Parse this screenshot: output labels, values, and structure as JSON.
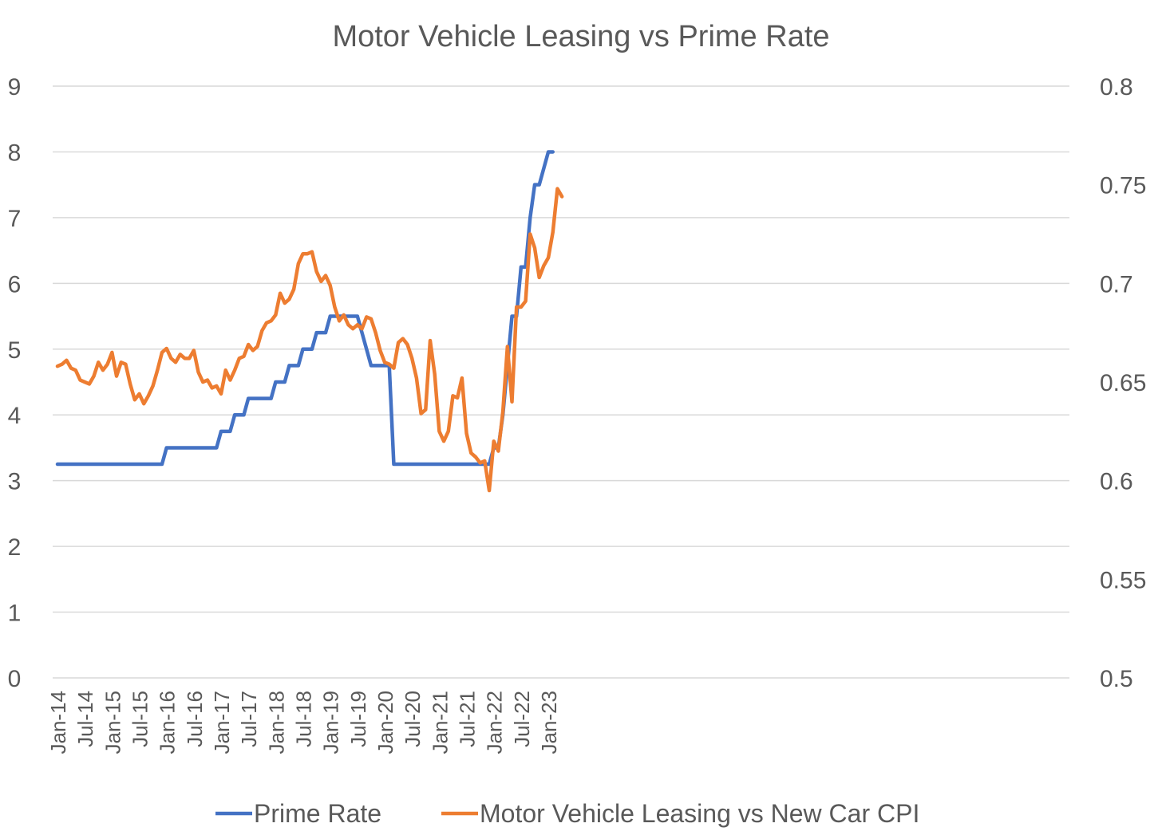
{
  "chart_data": {
    "type": "line",
    "title": "Motor Vehicle Leasing vs Prime Rate",
    "x_tick_labels": [
      "Jan-14",
      "Jul-14",
      "Jan-15",
      "Jul-15",
      "Jan-16",
      "Jul-16",
      "Jan-17",
      "Jul-17",
      "Jan-18",
      "Jul-18",
      "Jan-19",
      "Jul-19",
      "Jan-20",
      "Jul-20",
      "Jan-21",
      "Jul-21",
      "Jan-22",
      "Jul-22",
      "Jan-23"
    ],
    "y_left": {
      "ticks": [
        "0",
        "1",
        "2",
        "3",
        "4",
        "5",
        "6",
        "7",
        "8",
        "9"
      ],
      "range": [
        0,
        9
      ]
    },
    "y_right": {
      "ticks": [
        "0.5",
        "0.55",
        "0.6",
        "0.65",
        "0.7",
        "0.75",
        "0.8"
      ],
      "range": [
        0.5,
        0.8
      ]
    },
    "grid": true,
    "legend_position": "bottom",
    "series": [
      {
        "name": "Prime Rate",
        "axis": "left",
        "color": "#4472c4",
        "start": "Jan-14",
        "values": [
          3.25,
          3.25,
          3.25,
          3.25,
          3.25,
          3.25,
          3.25,
          3.25,
          3.25,
          3.25,
          3.25,
          3.25,
          3.25,
          3.25,
          3.25,
          3.25,
          3.25,
          3.25,
          3.25,
          3.25,
          3.25,
          3.25,
          3.25,
          3.25,
          3.5,
          3.5,
          3.5,
          3.5,
          3.5,
          3.5,
          3.5,
          3.5,
          3.5,
          3.5,
          3.5,
          3.5,
          3.75,
          3.75,
          3.75,
          4.0,
          4.0,
          4.0,
          4.25,
          4.25,
          4.25,
          4.25,
          4.25,
          4.25,
          4.5,
          4.5,
          4.5,
          4.75,
          4.75,
          4.75,
          5.0,
          5.0,
          5.0,
          5.25,
          5.25,
          5.25,
          5.5,
          5.5,
          5.5,
          5.5,
          5.5,
          5.5,
          5.5,
          5.25,
          5.0,
          4.75,
          4.75,
          4.75,
          4.75,
          4.75,
          3.25,
          3.25,
          3.25,
          3.25,
          3.25,
          3.25,
          3.25,
          3.25,
          3.25,
          3.25,
          3.25,
          3.25,
          3.25,
          3.25,
          3.25,
          3.25,
          3.25,
          3.25,
          3.25,
          3.25,
          3.25,
          3.25,
          3.5,
          3.5,
          4.0,
          4.75,
          5.5,
          5.5,
          6.25,
          6.25,
          7.0,
          7.5,
          7.5,
          7.75,
          8.0,
          8.0
        ]
      },
      {
        "name": "Motor Vehicle Leasing vs New Car CPI",
        "axis": "right",
        "color": "#ed7d31",
        "start": "Jan-14",
        "values": [
          0.658,
          0.659,
          0.661,
          0.657,
          0.656,
          0.651,
          0.65,
          0.649,
          0.653,
          0.66,
          0.656,
          0.659,
          0.665,
          0.653,
          0.66,
          0.659,
          0.649,
          0.641,
          0.644,
          0.639,
          0.643,
          0.648,
          0.656,
          0.665,
          0.667,
          0.662,
          0.66,
          0.664,
          0.662,
          0.662,
          0.666,
          0.655,
          0.65,
          0.651,
          0.647,
          0.648,
          0.644,
          0.656,
          0.651,
          0.656,
          0.662,
          0.663,
          0.669,
          0.666,
          0.668,
          0.676,
          0.68,
          0.681,
          0.684,
          0.695,
          0.69,
          0.692,
          0.697,
          0.71,
          0.715,
          0.715,
          0.716,
          0.706,
          0.701,
          0.704,
          0.699,
          0.688,
          0.681,
          0.684,
          0.679,
          0.677,
          0.679,
          0.677,
          0.683,
          0.682,
          0.675,
          0.666,
          0.66,
          0.659,
          0.657,
          0.67,
          0.672,
          0.669,
          0.662,
          0.652,
          0.634,
          0.636,
          0.671,
          0.654,
          0.625,
          0.62,
          0.625,
          0.643,
          0.642,
          0.652,
          0.624,
          0.614,
          0.612,
          0.609,
          0.61,
          0.595,
          0.62,
          0.615,
          0.635,
          0.668,
          0.64,
          0.688,
          0.688,
          0.691,
          0.725,
          0.718,
          0.703,
          0.709,
          0.713,
          0.726,
          0.748,
          0.744
        ]
      }
    ]
  }
}
